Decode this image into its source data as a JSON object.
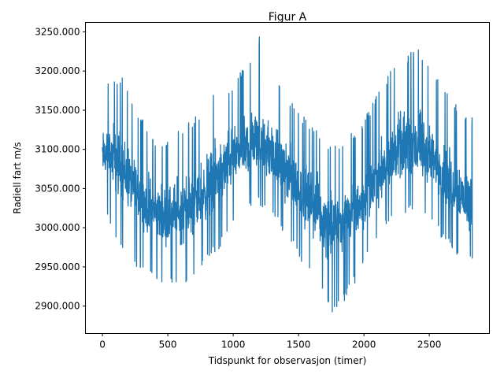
{
  "chart_data": {
    "type": "line",
    "title": "Figur A",
    "xlabel": "Tidspunkt for observasjon (timer)",
    "ylabel": "Radiell fart m/s",
    "xlim": [
      -130,
      2960
    ],
    "ylim": [
      2865,
      3262
    ],
    "xticks": [
      0,
      500,
      1000,
      1500,
      2000,
      2500
    ],
    "yticks": [
      2900,
      2950,
      3000,
      3050,
      3100,
      3150,
      3200,
      3250
    ],
    "ytick_labels": [
      "2900.000",
      "2950.000",
      "3000.000",
      "3050.000",
      "3100.000",
      "3150.000",
      "3200.000",
      "3250.000"
    ],
    "grid": false,
    "legend": "none",
    "series": [
      {
        "color": "#1f77b4",
        "x": [
          0,
          50,
          100,
          150,
          200,
          250,
          300,
          350,
          400,
          450,
          500,
          550,
          600,
          650,
          700,
          750,
          800,
          850,
          900,
          950,
          1000,
          1050,
          1100,
          1150,
          1200,
          1250,
          1300,
          1350,
          1400,
          1450,
          1500,
          1550,
          1600,
          1650,
          1700,
          1750,
          1800,
          1850,
          1900,
          1950,
          2000,
          2050,
          2100,
          2150,
          2200,
          2250,
          2300,
          2350,
          2400,
          2450,
          2500,
          2550,
          2600,
          2650,
          2700,
          2750,
          2800,
          2830
        ],
        "center": [
          3090,
          3095,
          3085,
          3075,
          3060,
          3045,
          3035,
          3025,
          3020,
          3015,
          3015,
          3020,
          3020,
          3025,
          3030,
          3040,
          3050,
          3060,
          3070,
          3080,
          3090,
          3095,
          3100,
          3105,
          3105,
          3100,
          3090,
          3080,
          3070,
          3060,
          3050,
          3040,
          3030,
          3020,
          3010,
          3010,
          3005,
          3010,
          3015,
          3025,
          3035,
          3045,
          3060,
          3075,
          3085,
          3095,
          3100,
          3105,
          3100,
          3095,
          3090,
          3080,
          3070,
          3060,
          3050,
          3040,
          3030,
          3025
        ],
        "low": [
          3030,
          3010,
          2985,
          2975,
          2965,
          2950,
          2945,
          2935,
          2935,
          2930,
          2925,
          2930,
          2915,
          2925,
          2935,
          2945,
          2955,
          2965,
          2975,
          2990,
          3005,
          3010,
          3020,
          3025,
          3030,
          3020,
          3015,
          3000,
          2990,
          2975,
          2960,
          2950,
          2935,
          2925,
          2910,
          2890,
          2900,
          2905,
          2920,
          2935,
          2950,
          2965,
          2980,
          2995,
          3005,
          3010,
          3015,
          3020,
          3015,
          3010,
          3005,
          2995,
          2985,
          2975,
          2965,
          2960,
          2950,
          2955
        ],
        "high": [
          3170,
          3190,
          3195,
          3195,
          3175,
          3150,
          3140,
          3130,
          3115,
          3110,
          3115,
          3120,
          3125,
          3140,
          3140,
          3150,
          3160,
          3170,
          3175,
          3180,
          3185,
          3200,
          3210,
          3220,
          3245,
          3210,
          3195,
          3185,
          3170,
          3160,
          3150,
          3140,
          3130,
          3125,
          3110,
          3105,
          3105,
          3110,
          3120,
          3130,
          3140,
          3155,
          3170,
          3190,
          3200,
          3210,
          3215,
          3225,
          3230,
          3225,
          3210,
          3195,
          3180,
          3170,
          3160,
          3150,
          3145,
          3140
        ]
      }
    ]
  }
}
